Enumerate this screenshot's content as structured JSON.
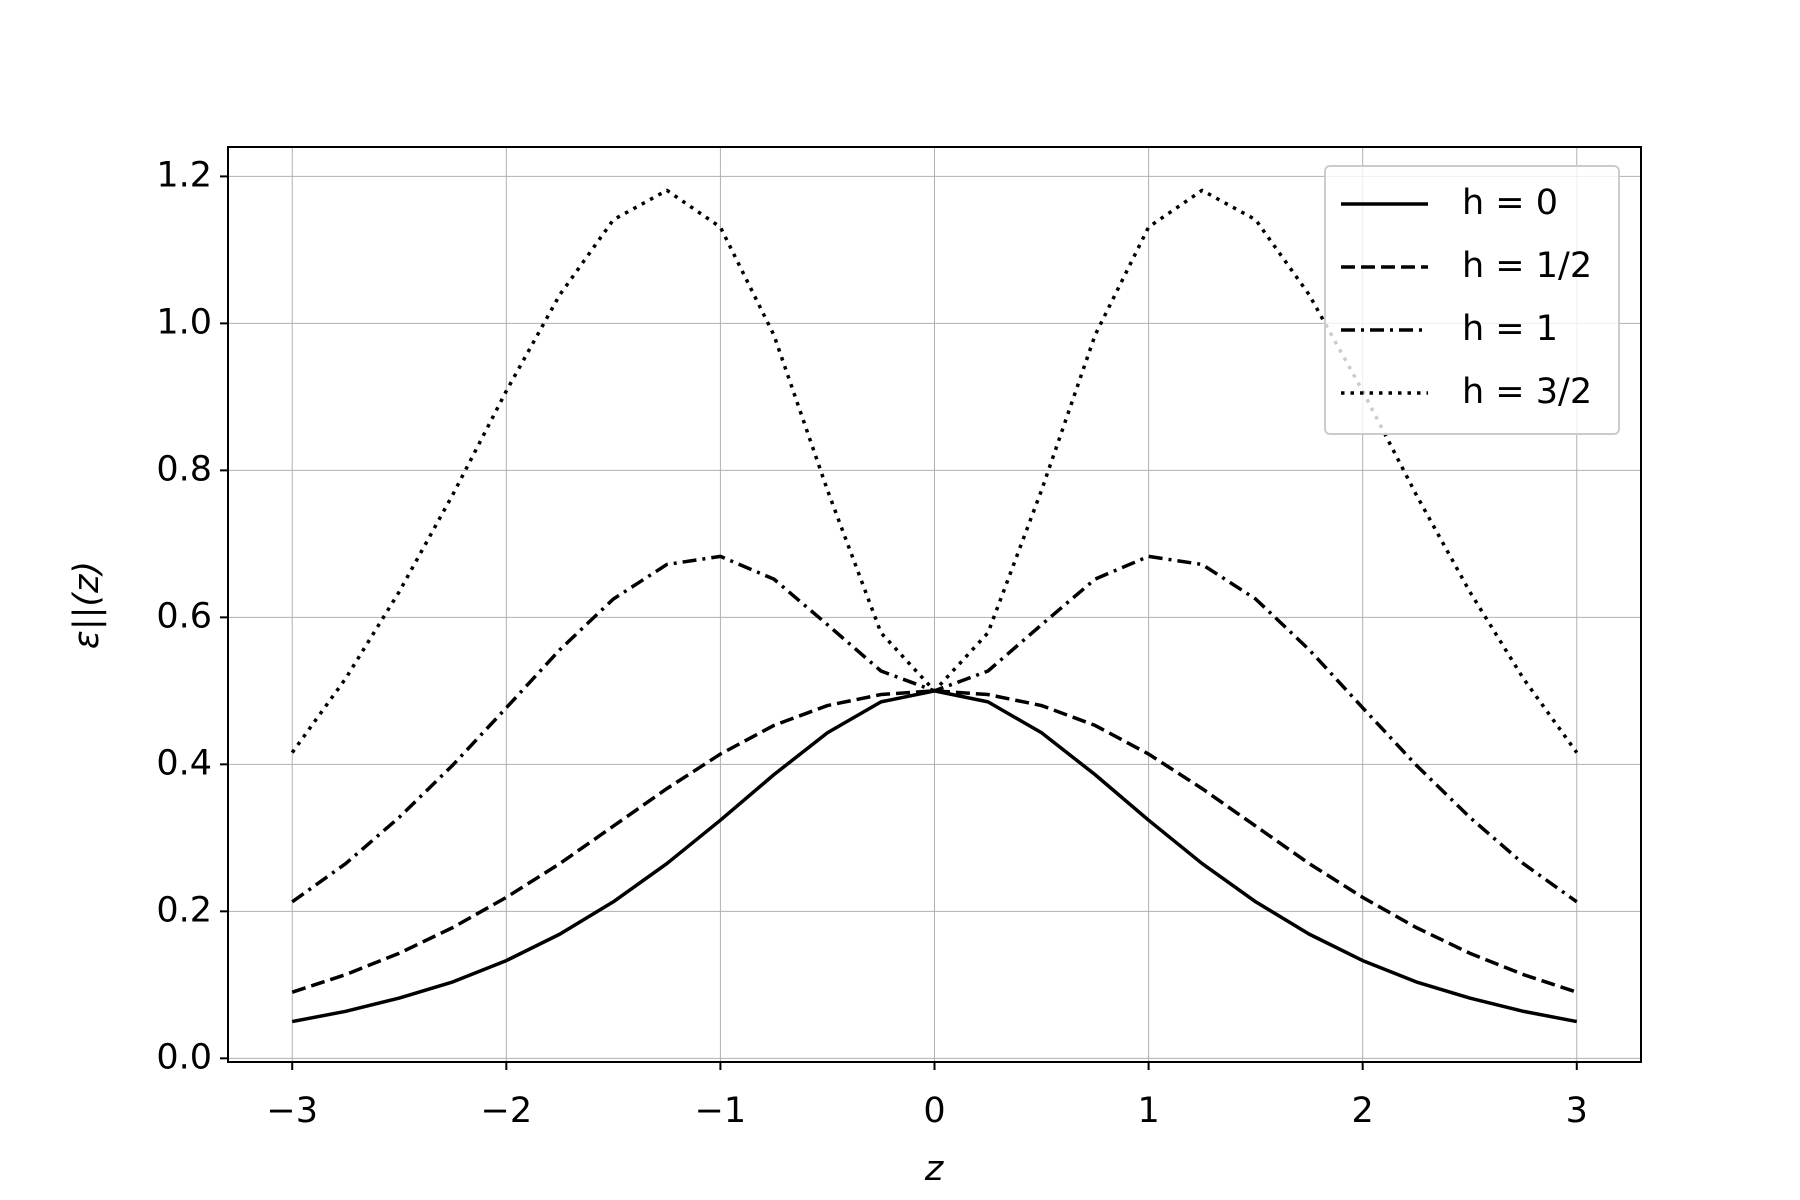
{
  "chart_data": {
    "type": "line",
    "x_label": "z",
    "y_label": "ε||(z)",
    "x": [
      -3,
      -2.75,
      -2.5,
      -2.25,
      -2,
      -1.75,
      -1.5,
      -1.25,
      -1,
      -0.75,
      -0.5,
      -0.25,
      0,
      0.25,
      0.5,
      0.75,
      1,
      1.25,
      1.5,
      1.75,
      2,
      2.25,
      2.5,
      2.75,
      3
    ],
    "series": [
      {
        "name": "h = 0",
        "color": "#000000",
        "dash": "solid",
        "values": [
          0.05,
          0.064,
          0.082,
          0.104,
          0.133,
          0.169,
          0.213,
          0.265,
          0.324,
          0.386,
          0.443,
          0.485,
          0.5,
          0.485,
          0.443,
          0.386,
          0.324,
          0.265,
          0.213,
          0.169,
          0.133,
          0.104,
          0.082,
          0.064,
          0.05
        ]
      },
      {
        "name": "h = 1/2",
        "color": "#000000",
        "dash": "dashed",
        "values": [
          0.09,
          0.114,
          0.143,
          0.178,
          0.219,
          0.265,
          0.316,
          0.367,
          0.414,
          0.453,
          0.48,
          0.495,
          0.5,
          0.495,
          0.48,
          0.453,
          0.414,
          0.367,
          0.316,
          0.265,
          0.219,
          0.178,
          0.143,
          0.114,
          0.09
        ]
      },
      {
        "name": "h = 1",
        "color": "#000000",
        "dash": "dashdot",
        "values": [
          0.213,
          0.265,
          0.328,
          0.399,
          0.477,
          0.556,
          0.625,
          0.672,
          0.683,
          0.652,
          0.59,
          0.527,
          0.5,
          0.527,
          0.59,
          0.652,
          0.683,
          0.672,
          0.625,
          0.556,
          0.477,
          0.399,
          0.328,
          0.265,
          0.213
        ]
      },
      {
        "name": "h = 3/2",
        "color": "#000000",
        "dash": "dotted",
        "values": [
          0.416,
          0.517,
          0.635,
          0.767,
          0.908,
          1.039,
          1.141,
          1.181,
          1.131,
          0.984,
          0.773,
          0.579,
          0.5,
          0.579,
          0.773,
          0.984,
          1.131,
          1.181,
          1.141,
          1.039,
          0.908,
          0.767,
          0.635,
          0.517,
          0.416
        ]
      }
    ],
    "xlim": [
      -3.3,
      3.3
    ],
    "ylim": [
      -0.005,
      1.24
    ],
    "xticks": [
      {
        "value": -3,
        "label": "−3"
      },
      {
        "value": -2,
        "label": "−2"
      },
      {
        "value": -1,
        "label": "−1"
      },
      0,
      1,
      2,
      3
    ],
    "yticks": [
      {
        "value": 0,
        "label": "0.0"
      },
      0.2,
      0.4,
      0.6,
      0.8,
      {
        "value": 1,
        "label": "1.0"
      },
      1.2
    ],
    "grid": true,
    "legend": "upper right"
  }
}
